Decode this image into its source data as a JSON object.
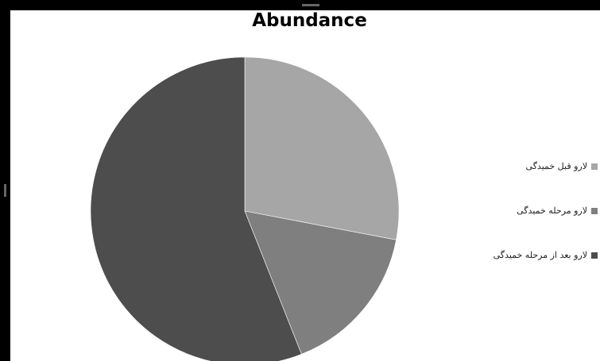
{
  "chart_data": {
    "type": "pie",
    "title": "Abundance",
    "start_angle_deg": 0,
    "direction": "clockwise",
    "slices": [
      {
        "label": "لارو قبل خمیدگی",
        "value": 28,
        "color": "#a6a6a6"
      },
      {
        "label": "لارو مرحله خمیدگی",
        "value": 16,
        "color": "#7f7f7f"
      },
      {
        "label": "لارو بعد از مرحله خمیدگی",
        "value": 56,
        "color": "#4d4d4d"
      }
    ],
    "legend_position": "right"
  }
}
